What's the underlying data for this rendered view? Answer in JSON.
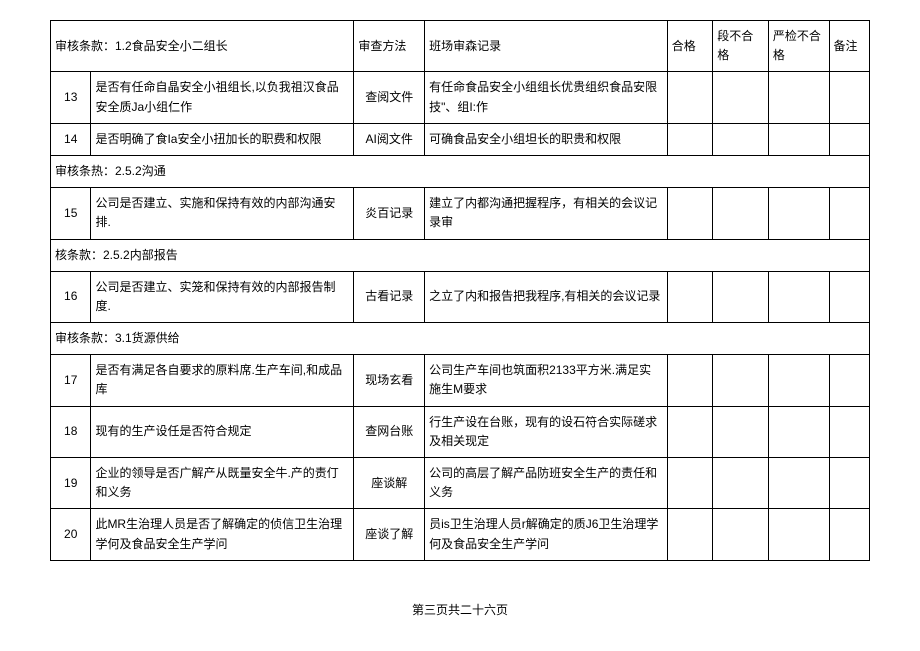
{
  "headers": {
    "section1": "审核条款：1.2食品安全小二组长",
    "method": "审查方法",
    "record": "班场审森记录",
    "pass": "合格",
    "partial": "段不合格",
    "strict": "严检不合格",
    "remark": "备注"
  },
  "sections": {
    "s2": "审核条热：2.5.2沟通",
    "s3": "核条款：2.5.2内部报告",
    "s4": "审核条款：3.1货源供给"
  },
  "rows": {
    "r13": {
      "num": "13",
      "question": "是否有任命自晶安全小祖组长,以负我祖汉食品安全质Ja小组仁作",
      "method": "查阅文件",
      "record": "有任命食品安全小组组长优贵组织食品安限技\"、组I:作"
    },
    "r14": {
      "num": "14",
      "question": "是否明确了食Ia安全小扭加长的职费和权限",
      "method": "AI阅文件",
      "record": "可确食品安全小组坦长的职贵和权限"
    },
    "r15": {
      "num": "15",
      "question": "公司是否建立、实施和保持有效的内部沟通安排.",
      "method": "炎百记录",
      "record": "建立了内都沟通把握程序，有相关的会议记录审"
    },
    "r16": {
      "num": "16",
      "question": "公司是否建立、实笼和保持有效的内部报告制度.",
      "method": "古看记录",
      "record": "之立了内和报告把我程序,有相关的会议记录"
    },
    "r17": {
      "num": "17",
      "question": "是否有满足各自要求的原料席.生产车间,和成品库",
      "method": "现场玄看",
      "record": "公司生产车间也筑面积2133平方米.满足实施生M要求"
    },
    "r18": {
      "num": "18",
      "question": "现有的生产设任是否符合规定",
      "method": "查网台账",
      "record": "行生产设在台账，现有的设石符合实际磋求及相关现定"
    },
    "r19": {
      "num": "19",
      "question": "企业的领导是否广解产从既量安全牛.产的责仃和义务",
      "method": "座谈解",
      "record": "公司的高层了解产品防班安全生产的责任和义务"
    },
    "r20": {
      "num": "20",
      "question": "此MR生治理人员是否了解确定的侦信卫生治理学何及食品安全生产学问",
      "method": "座谈了解",
      "record": "员is卫生治理人员r解确定的质J6卫生治理学何及食品安全生产学问"
    }
  },
  "footer": "第三页共二十六页"
}
